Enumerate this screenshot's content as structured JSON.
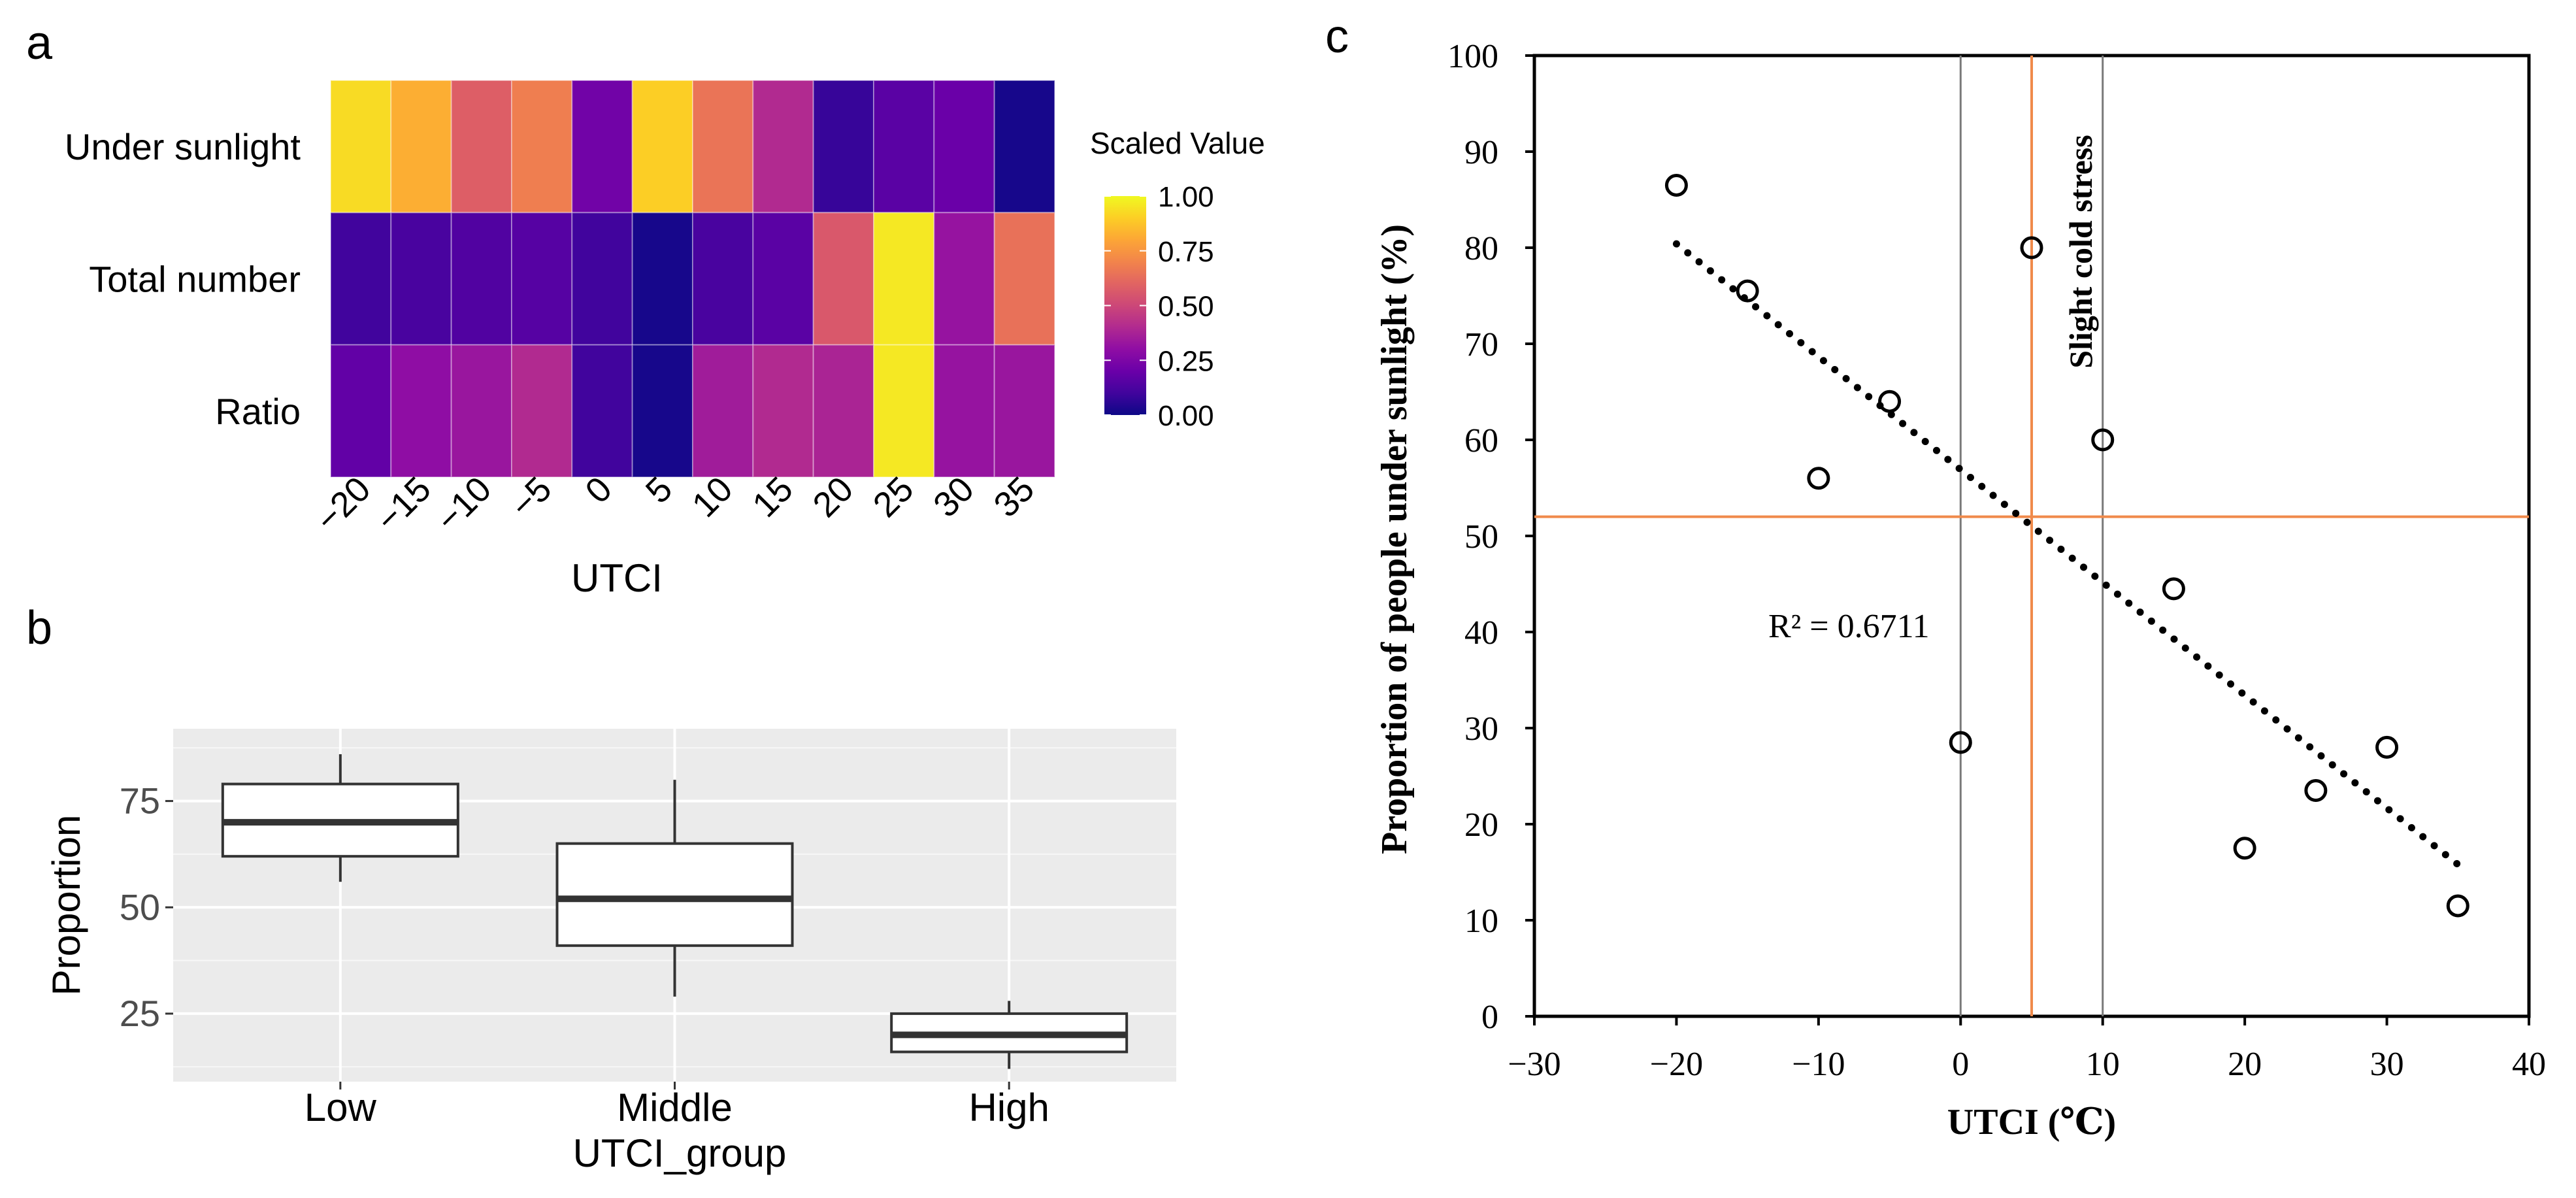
{
  "panels": {
    "a": {
      "letter": "a"
    },
    "b": {
      "letter": "b"
    },
    "c": {
      "letter": "c"
    }
  },
  "chart_data": [
    {
      "id": "a",
      "type": "heatmap",
      "xlabel": "UTCI",
      "x_categories": [
        "−20",
        "−15",
        "−10",
        "−5",
        "0",
        "5",
        "10",
        "15",
        "20",
        "25",
        "30",
        "35"
      ],
      "y_categories": [
        "Under sunlight",
        "Total number",
        "Ratio"
      ],
      "values": [
        [
          0.93,
          0.82,
          0.58,
          0.68,
          0.22,
          0.9,
          0.65,
          0.4,
          0.08,
          0.16,
          0.2,
          0.02
        ],
        [
          0.1,
          0.12,
          0.14,
          0.15,
          0.1,
          0.02,
          0.12,
          0.16,
          0.56,
          0.96,
          0.32,
          0.64
        ],
        [
          0.18,
          0.3,
          0.33,
          0.4,
          0.1,
          0.02,
          0.35,
          0.4,
          0.38,
          0.96,
          0.32,
          0.33
        ]
      ],
      "legend": {
        "title": "Scaled Value",
        "ticks": [
          "1.00",
          "0.75",
          "0.50",
          "0.25",
          "0.00"
        ],
        "colormap": "plasma"
      }
    },
    {
      "id": "b",
      "type": "box",
      "xlabel": "UTCI_group",
      "ylabel": "Proportion",
      "categories": [
        "Low",
        "Middle",
        "High"
      ],
      "ylim": [
        9,
        92
      ],
      "yticks": [
        "75",
        "50",
        "25"
      ],
      "boxes": [
        {
          "name": "Low",
          "min": 56,
          "q1": 62,
          "median": 70,
          "q3": 79,
          "max": 86
        },
        {
          "name": "Middle",
          "min": 29,
          "q1": 41,
          "median": 52,
          "q3": 65,
          "max": 80
        },
        {
          "name": "High",
          "min": 12,
          "q1": 16,
          "median": 20,
          "q3": 25,
          "max": 28
        }
      ]
    },
    {
      "id": "c",
      "type": "scatter",
      "xlabel": "UTCI (℃)",
      "ylabel": "Proportion of people under sunlight (%)",
      "xlim": [
        -30,
        40
      ],
      "ylim": [
        0,
        100
      ],
      "xticks": [
        "−30",
        "−20",
        "−10",
        "0",
        "10",
        "20",
        "30",
        "40"
      ],
      "yticks": [
        "0",
        "10",
        "20",
        "30",
        "40",
        "50",
        "60",
        "70",
        "80",
        "90",
        "100"
      ],
      "points": {
        "x": [
          -20,
          -15,
          -10,
          -5,
          0,
          5,
          10,
          15,
          20,
          25,
          30,
          35
        ],
        "y": [
          86.5,
          75.5,
          56,
          64,
          28.5,
          80,
          60,
          44.5,
          17.5,
          23.5,
          28,
          11.5
        ]
      },
      "trendline": {
        "style": "dotted",
        "x": [
          -20,
          35
        ],
        "y": [
          80.4,
          15.8
        ]
      },
      "r2_label": "R² = 0.6711",
      "reference_lines": {
        "vertical_gray": [
          0,
          10
        ],
        "vertical_orange": 5,
        "horizontal_orange": 52
      },
      "annotation": "Slight cold stress",
      "colors": {
        "orange": "#f08a4b",
        "gray": "#7a7a7a"
      }
    }
  ]
}
